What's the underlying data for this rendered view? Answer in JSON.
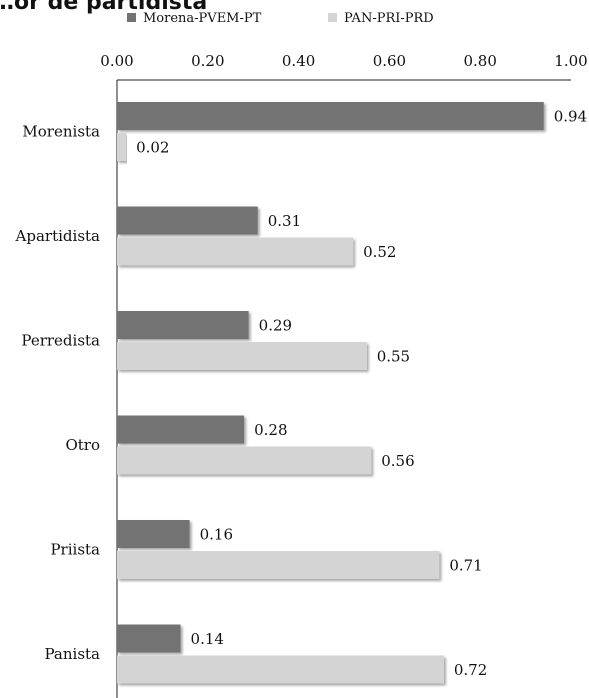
{
  "chart_data": {
    "type": "bar",
    "orientation": "horizontal",
    "title": "…or de partidista",
    "categories": [
      "Morenista",
      "Apartidista",
      "Perredista",
      "Otro",
      "Priista",
      "Panista"
    ],
    "series": [
      {
        "name": "Morena-PVEM-PT",
        "values": [
          0.94,
          0.31,
          0.29,
          0.28,
          0.16,
          0.14
        ],
        "labels": [
          "0.94",
          "0.31",
          "0.29",
          "0.28",
          "0.16",
          "0.14"
        ]
      },
      {
        "name": "PAN-PRI-PRD",
        "values": [
          0.02,
          0.52,
          0.55,
          0.56,
          0.71,
          0.72
        ],
        "labels": [
          "0.02",
          "0.52",
          "0.55",
          "0.56",
          "0.71",
          "0.72"
        ]
      }
    ],
    "xlim": [
      0,
      1
    ],
    "xticks": [
      "0.00",
      "0.20",
      "0.40",
      "0.60",
      "0.80",
      "1.00"
    ],
    "xaxis_position": "top",
    "legend_position": "top",
    "grid": false,
    "colors": [
      "#737373",
      "#d4d4d4"
    ]
  }
}
